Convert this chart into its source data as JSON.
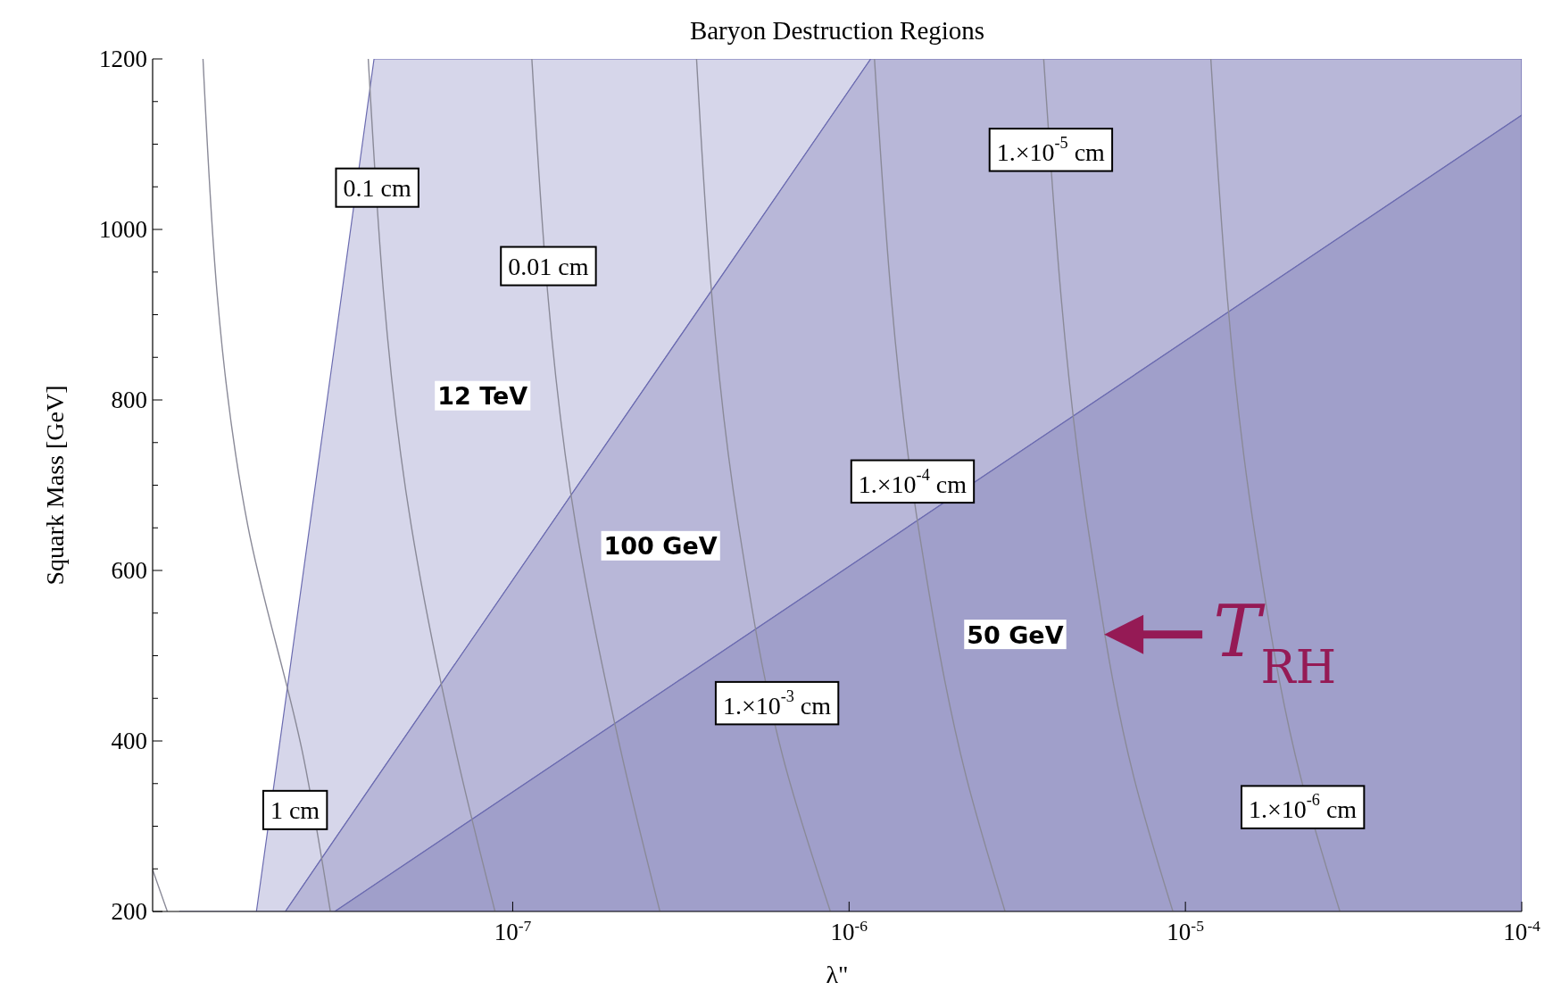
{
  "chart_data": {
    "type": "area",
    "title": "Baryon Destruction Regions",
    "xlabel": "λ\"",
    "ylabel": "Squark Mass [GeV]",
    "log": "x",
    "xlim": [
      8.5e-09,
      0.0001
    ],
    "ylim": [
      200,
      1200
    ],
    "xticks": [
      {
        "value": 1e-07,
        "label": "10$^{-7}$"
      },
      {
        "value": 1e-06,
        "label": "10$^{-6}$"
      },
      {
        "value": 1e-05,
        "label": "10$^{-5}$"
      },
      {
        "value": 0.0001,
        "label": "10$^{-4}$"
      }
    ],
    "yticks": [
      200,
      {
        "value": 250,
        "label": null
      },
      {
        "value": 300,
        "label": null
      },
      {
        "value": 350,
        "label": null
      },
      400,
      {
        "value": 450,
        "label": null
      },
      {
        "value": 500,
        "label": null
      },
      {
        "value": 550,
        "label": null
      },
      600,
      {
        "value": 650,
        "label": null
      },
      {
        "value": 700,
        "label": null
      },
      {
        "value": 750,
        "label": null
      },
      800,
      {
        "value": 850,
        "label": null
      },
      {
        "value": 900,
        "label": null
      },
      {
        "value": 950,
        "label": null
      },
      1000,
      {
        "value": 1050,
        "label": null
      },
      {
        "value": 1100,
        "label": null
      },
      {
        "value": 1150,
        "label": null
      },
      1200
    ],
    "series": [
      {
        "name": "12 TeV",
        "color": "#d6d6ea",
        "x": [
          1.02e-08,
          1.73e-08,
          2.11e-08,
          2.96e-08,
          3.87e-08,
          1.16e-06,
          0.0001
        ],
        "values": [
          200,
          200,
          446,
          866,
          1200,
          1200,
          1200
        ]
      },
      {
        "name": "100 GeV",
        "color": "#b8b7d8",
        "x": [
          2.11e-08,
          2.96e-08,
          3.87e-08,
          1.16e-06,
          0.0001
        ],
        "values": [
          200,
          285,
          352,
          1200,
          1200
        ]
      },
      {
        "name": "50 GeV",
        "color": "#a09fca",
        "x": [
          2.96e-08,
          3.87e-08,
          0.0001
        ],
        "values": [
          200,
          231,
          1134
        ]
      },
      {
        "type": "line",
        "color": "#8a8a98",
        "x": [
          8.5e-09,
          9.4e-09
        ],
        "values": [
          249,
          200
        ]
      },
      {
        "type": "line",
        "name": "1 cm",
        "color": "#8a8a98",
        "x": [
          1.2e-08,
          1.63e-08,
          2.39e-08,
          2.87e-08
        ],
        "values": [
          1200,
          653,
          380,
          200
        ]
      },
      {
        "type": "line",
        "name": "0.1 cm",
        "color": "#8a8a98",
        "x": [
          3.72e-08,
          4.99e-08,
          6.85e-08,
          8.86e-08
        ],
        "values": [
          1200,
          653,
          380,
          200
        ]
      },
      {
        "type": "line",
        "name": "0.01 cm",
        "color": "#8a8a98",
        "x": [
          1.14e-07,
          1.54e-07,
          2.12e-07,
          2.74e-07
        ],
        "values": [
          1200,
          653,
          380,
          200
        ]
      },
      {
        "type": "line",
        "name": "1.×10$^{-3}$ cm",
        "color": "#8a8a98",
        "x": [
          3.52e-07,
          4.69e-07,
          6.37e-07,
          8.8e-07
        ],
        "values": [
          1200,
          653,
          380,
          200
        ]
      },
      {
        "type": "line",
        "name": "1.×10$^{-4}$ cm",
        "color": "#8a8a98",
        "x": [
          1.19e-06,
          1.62e-06,
          2.23e-06,
          2.91e-06
        ],
        "values": [
          1200,
          642,
          358,
          200
        ]
      },
      {
        "type": "line",
        "name": "1.×10$^{-5}$ cm",
        "color": "#8a8a98",
        "x": [
          3.79e-06,
          5.17e-06,
          7.02e-06,
          9.18e-06
        ],
        "values": [
          1200,
          642,
          358,
          200
        ]
      },
      {
        "type": "line",
        "name": "1.×10$^{-6}$ cm",
        "color": "#8a8a98",
        "x": [
          1.19e-05,
          1.61e-05,
          2.2e-05,
          2.88e-05
        ],
        "values": [
          1200,
          642,
          358,
          200
        ]
      }
    ],
    "annotations": [
      "T$_{RH}$"
    ]
  }
}
